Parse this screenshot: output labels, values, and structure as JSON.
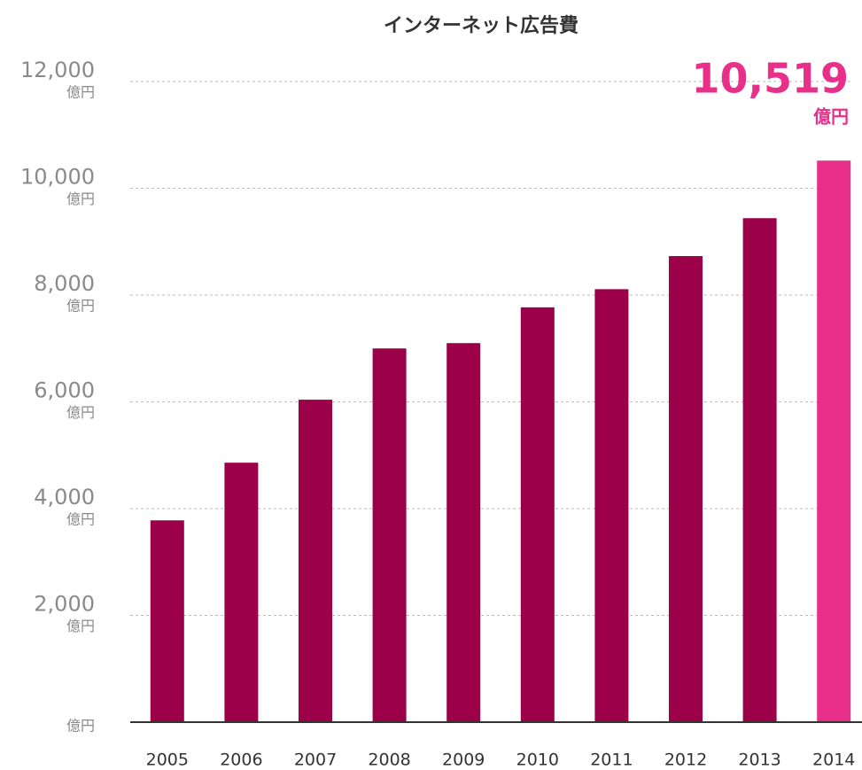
{
  "chart_data": {
    "type": "bar",
    "title": "インターネット広告費",
    "categories": [
      "2005",
      "2006",
      "2007",
      "2008",
      "2009",
      "2010",
      "2011",
      "2012",
      "2013",
      "2014"
    ],
    "values": [
      3780,
      4860,
      6040,
      7000,
      7100,
      7770,
      8110,
      8730,
      9440,
      10519
    ],
    "value_labels": [
      null,
      null,
      null,
      null,
      null,
      null,
      null,
      null,
      null,
      "10,519"
    ],
    "colors": [
      "#9b0048",
      "#9b0048",
      "#9b0048",
      "#9b0048",
      "#9b0048",
      "#9b0048",
      "#9b0048",
      "#9b0048",
      "#9b0048",
      "#e8308a"
    ],
    "y_unit": "億円",
    "ylim": [
      0,
      12000
    ],
    "yticks": [
      {
        "value": 0
      },
      {
        "value": 2000,
        "label": "2,000"
      },
      {
        "value": 4000,
        "label": "4,000"
      },
      {
        "value": 6000,
        "label": "6,000"
      },
      {
        "value": 8000,
        "label": "8,000"
      },
      {
        "value": 10000,
        "label": "10,000"
      },
      {
        "value": 12000,
        "label": "12,000"
      }
    ],
    "grid": true
  }
}
